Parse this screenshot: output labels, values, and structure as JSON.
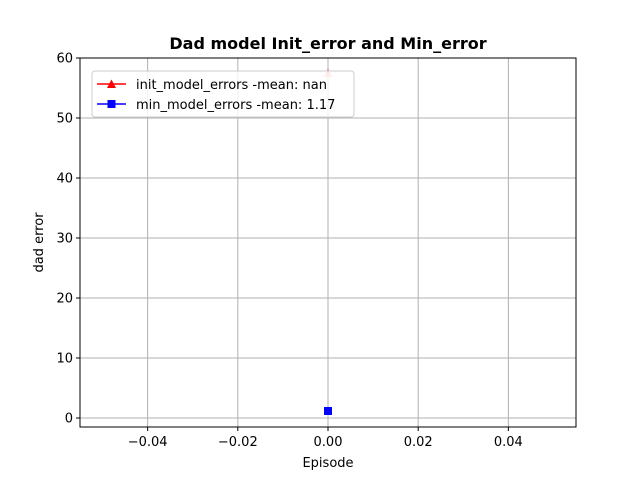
{
  "chart_data": {
    "type": "line",
    "title": "Dad model Init_error and Min_error",
    "xlabel": "Episode",
    "ylabel": "dad error",
    "xlim": [
      -0.055,
      0.055
    ],
    "ylim": [
      -1.5,
      60
    ],
    "x_ticks": [
      -0.04,
      -0.02,
      0.0,
      0.02,
      0.04
    ],
    "x_tick_labels": [
      "−0.04",
      "−0.02",
      "0.00",
      "0.02",
      "0.04"
    ],
    "y_ticks": [
      0,
      10,
      20,
      30,
      40,
      50,
      60
    ],
    "y_tick_labels": [
      "0",
      "10",
      "20",
      "30",
      "40",
      "50",
      "60"
    ],
    "grid": true,
    "legend_position": "upper-left",
    "series": [
      {
        "name": "init_model_errors -mean: nan",
        "color": "#ff0000",
        "marker": "triangle",
        "points": [
          {
            "x": 0.0,
            "y": 57.5
          }
        ],
        "point_opacity": 0.3
      },
      {
        "name": "min_model_errors -mean: 1.17",
        "color": "#0000ff",
        "marker": "square",
        "points": [
          {
            "x": 0.0,
            "y": 1.17
          }
        ],
        "point_opacity": 1.0
      }
    ]
  }
}
